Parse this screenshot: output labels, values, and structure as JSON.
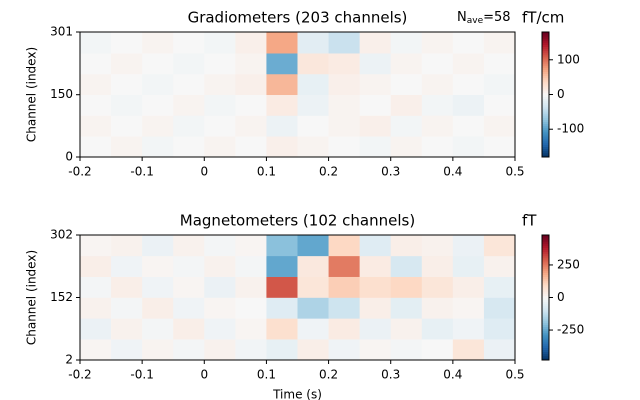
{
  "chart_data": [
    {
      "type": "heatmap",
      "title": "Gradiometers (203 channels)",
      "ylabel": "Channel (index)",
      "annotation": {
        "base": "N",
        "sub": "ave",
        "rest": "=58"
      },
      "colorbar_label": "fT/cm",
      "cmap": "RdBu_r",
      "clim": [
        -180,
        180
      ],
      "cticks": [
        -100,
        0,
        100
      ],
      "xlim": [
        -0.2,
        0.5
      ],
      "xticks": [
        -0.2,
        -0.1,
        0.0,
        0.1,
        0.2,
        0.3,
        0.4,
        0.5
      ],
      "ylim": [
        0,
        301
      ],
      "yticks": [
        0,
        150,
        301
      ],
      "xbins": [
        -0.2,
        -0.15,
        -0.1,
        -0.05,
        0.0,
        0.05,
        0.1,
        0.15,
        0.2,
        0.25,
        0.3,
        0.35,
        0.4,
        0.45,
        0.5
      ],
      "ybins": [
        0,
        50,
        100,
        150,
        200,
        250,
        301
      ],
      "values": [
        [
          0,
          5,
          -5,
          0,
          5,
          0,
          10,
          5,
          0,
          -5,
          5,
          0,
          -5,
          0
        ],
        [
          5,
          0,
          5,
          -5,
          0,
          5,
          -10,
          0,
          5,
          10,
          -5,
          5,
          0,
          5
        ],
        [
          0,
          -5,
          0,
          5,
          -5,
          0,
          15,
          -10,
          5,
          0,
          10,
          -5,
          -10,
          0
        ],
        [
          5,
          0,
          -5,
          0,
          5,
          10,
          60,
          -15,
          10,
          5,
          0,
          5,
          0,
          -5
        ],
        [
          0,
          5,
          0,
          -5,
          0,
          5,
          -90,
          20,
          15,
          -10,
          5,
          0,
          5,
          0
        ],
        [
          -5,
          0,
          5,
          0,
          -5,
          10,
          70,
          -20,
          -40,
          10,
          -5,
          5,
          0,
          5
        ]
      ]
    },
    {
      "type": "heatmap",
      "title": "Magnetometers (102 channels)",
      "ylabel": "Channel (index)",
      "xlabel": "Time (s)",
      "colorbar_label": "fT",
      "cmap": "RdBu_r",
      "clim": [
        -480,
        480
      ],
      "cticks": [
        -250,
        0,
        250
      ],
      "xlim": [
        -0.2,
        0.5
      ],
      "xticks": [
        -0.2,
        -0.1,
        0.0,
        0.1,
        0.2,
        0.3,
        0.4,
        0.5
      ],
      "ylim": [
        2,
        302
      ],
      "yticks": [
        2,
        152,
        302
      ],
      "xbins": [
        -0.2,
        -0.15,
        -0.1,
        -0.05,
        0.0,
        0.05,
        0.1,
        0.15,
        0.2,
        0.25,
        0.3,
        0.35,
        0.4,
        0.45,
        0.5
      ],
      "ybins": [
        2,
        52,
        102,
        152,
        202,
        252,
        302
      ],
      "values": [
        [
          10,
          -20,
          15,
          -10,
          20,
          -15,
          -40,
          30,
          -20,
          10,
          -10,
          0,
          60,
          -30
        ],
        [
          -30,
          20,
          -10,
          30,
          -20,
          10,
          80,
          -20,
          40,
          -30,
          20,
          -40,
          -20,
          -60
        ],
        [
          20,
          -10,
          30,
          -20,
          10,
          0,
          -60,
          -150,
          -100,
          30,
          -50,
          20,
          10,
          -80
        ],
        [
          -10,
          30,
          -20,
          10,
          -30,
          20,
          300,
          60,
          120,
          80,
          100,
          60,
          30,
          -40
        ],
        [
          30,
          -20,
          10,
          -10,
          20,
          -10,
          -250,
          50,
          250,
          40,
          -80,
          30,
          -40,
          20
        ],
        [
          10,
          20,
          -30,
          20,
          -10,
          10,
          -200,
          -250,
          100,
          -60,
          30,
          20,
          -30,
          60
        ]
      ]
    }
  ]
}
